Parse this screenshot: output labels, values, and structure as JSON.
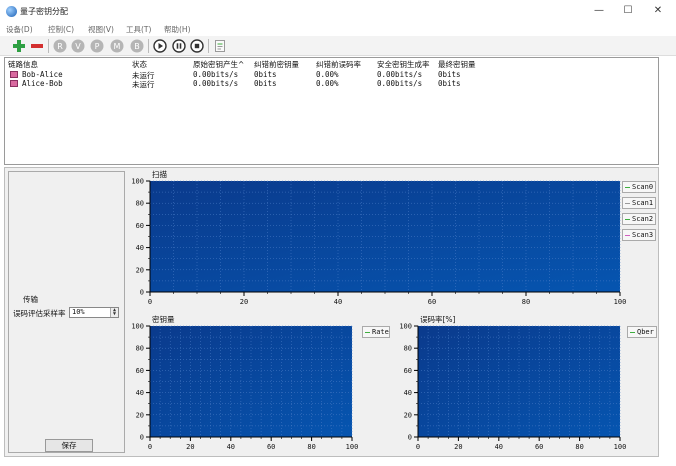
{
  "window": {
    "title": "量子密钥分配",
    "minimize": "—",
    "maximize": "☐",
    "close": "✕"
  },
  "menu": {
    "items": [
      "设备(D)",
      "控制(C)",
      "视图(V)",
      "工具(T)",
      "帮助(H)"
    ]
  },
  "toolbar": {
    "buttons": [
      {
        "name": "add-button",
        "glyph": "plus",
        "color": "#2ea043"
      },
      {
        "name": "remove-button",
        "glyph": "minus",
        "color": "#d32f2f"
      },
      {
        "name": "r-button",
        "letter": "R",
        "color": "#b5b5b5"
      },
      {
        "name": "v-button",
        "letter": "V",
        "color": "#b5b5b5"
      },
      {
        "name": "p-button",
        "letter": "P",
        "color": "#b5b5b5"
      },
      {
        "name": "m-button",
        "letter": "M",
        "color": "#b5b5b5"
      },
      {
        "name": "b-button",
        "letter": "B",
        "color": "#b5b5b5"
      },
      {
        "name": "play-button",
        "glyph": "play",
        "color": "#333333"
      },
      {
        "name": "pause-button",
        "glyph": "pause",
        "color": "#333333"
      },
      {
        "name": "stop-button",
        "glyph": "stop",
        "color": "#333333"
      },
      {
        "name": "export-button",
        "glyph": "doc",
        "color": "#9a9a9a"
      }
    ]
  },
  "links": {
    "columns": [
      "链路信息",
      "状态",
      "原始密钥产生^",
      "纠错前密钥量",
      "纠错前误码率",
      "安全密钥生成率",
      "最终密钥量"
    ],
    "rows": [
      [
        "Bob-Alice",
        "未运行",
        "0.00bits/s",
        "0bits",
        "0.00%",
        "0.00bits/s",
        "0bits"
      ],
      [
        "Alice-Bob",
        "未运行",
        "0.00bits/s",
        "0bits",
        "0.00%",
        "0.00bits/s",
        "0bits"
      ]
    ]
  },
  "control": {
    "section": "传输",
    "sample_label": "误码评估采样率",
    "sample_value": "10%",
    "save": "保存"
  },
  "charts": {
    "bg_top": "#0a3a8c",
    "bg_bottom": "#0655b0",
    "scan": {
      "title": "扫描",
      "x_ticks": [
        "0",
        "20",
        "40",
        "60",
        "80",
        "100"
      ],
      "y_ticks": [
        "0",
        "20",
        "40",
        "60",
        "80",
        "100"
      ],
      "legend": [
        "Scan0",
        "Scan1",
        "Scan2",
        "Scan3"
      ],
      "legend_colors": [
        "#3fae3f",
        "#9a9a9a",
        "#3fae3f",
        "#d060c0"
      ]
    },
    "rate": {
      "title": "密钥量",
      "x_ticks": [
        "0",
        "20",
        "40",
        "60",
        "80",
        "100"
      ],
      "y_ticks": [
        "0",
        "20",
        "40",
        "60",
        "80",
        "100"
      ],
      "legend": [
        "Rate"
      ],
      "legend_colors": [
        "#3fae3f"
      ]
    },
    "qber": {
      "title": "误码率[%]",
      "x_ticks": [
        "0",
        "20",
        "40",
        "60",
        "80",
        "100"
      ],
      "y_ticks": [
        "0",
        "20",
        "40",
        "60",
        "80",
        "100"
      ],
      "legend": [
        "Qber"
      ],
      "legend_colors": [
        "#3fae3f"
      ]
    }
  },
  "chart_data": [
    {
      "type": "line",
      "title": "扫描",
      "xlim": [
        0,
        100
      ],
      "ylim": [
        0,
        100
      ],
      "series": [
        {
          "name": "Scan0",
          "x": [],
          "y": []
        },
        {
          "name": "Scan1",
          "x": [],
          "y": []
        },
        {
          "name": "Scan2",
          "x": [],
          "y": []
        },
        {
          "name": "Scan3",
          "x": [],
          "y": []
        }
      ],
      "grid": true,
      "legend": "right"
    },
    {
      "type": "line",
      "title": "密钥量",
      "xlim": [
        0,
        100
      ],
      "ylim": [
        0,
        100
      ],
      "series": [
        {
          "name": "Rate",
          "x": [],
          "y": []
        }
      ],
      "grid": true,
      "legend": "right"
    },
    {
      "type": "line",
      "title": "误码率[%]",
      "xlim": [
        0,
        100
      ],
      "ylim": [
        0,
        100
      ],
      "series": [
        {
          "name": "Qber",
          "x": [],
          "y": []
        }
      ],
      "grid": true,
      "legend": "right"
    }
  ]
}
